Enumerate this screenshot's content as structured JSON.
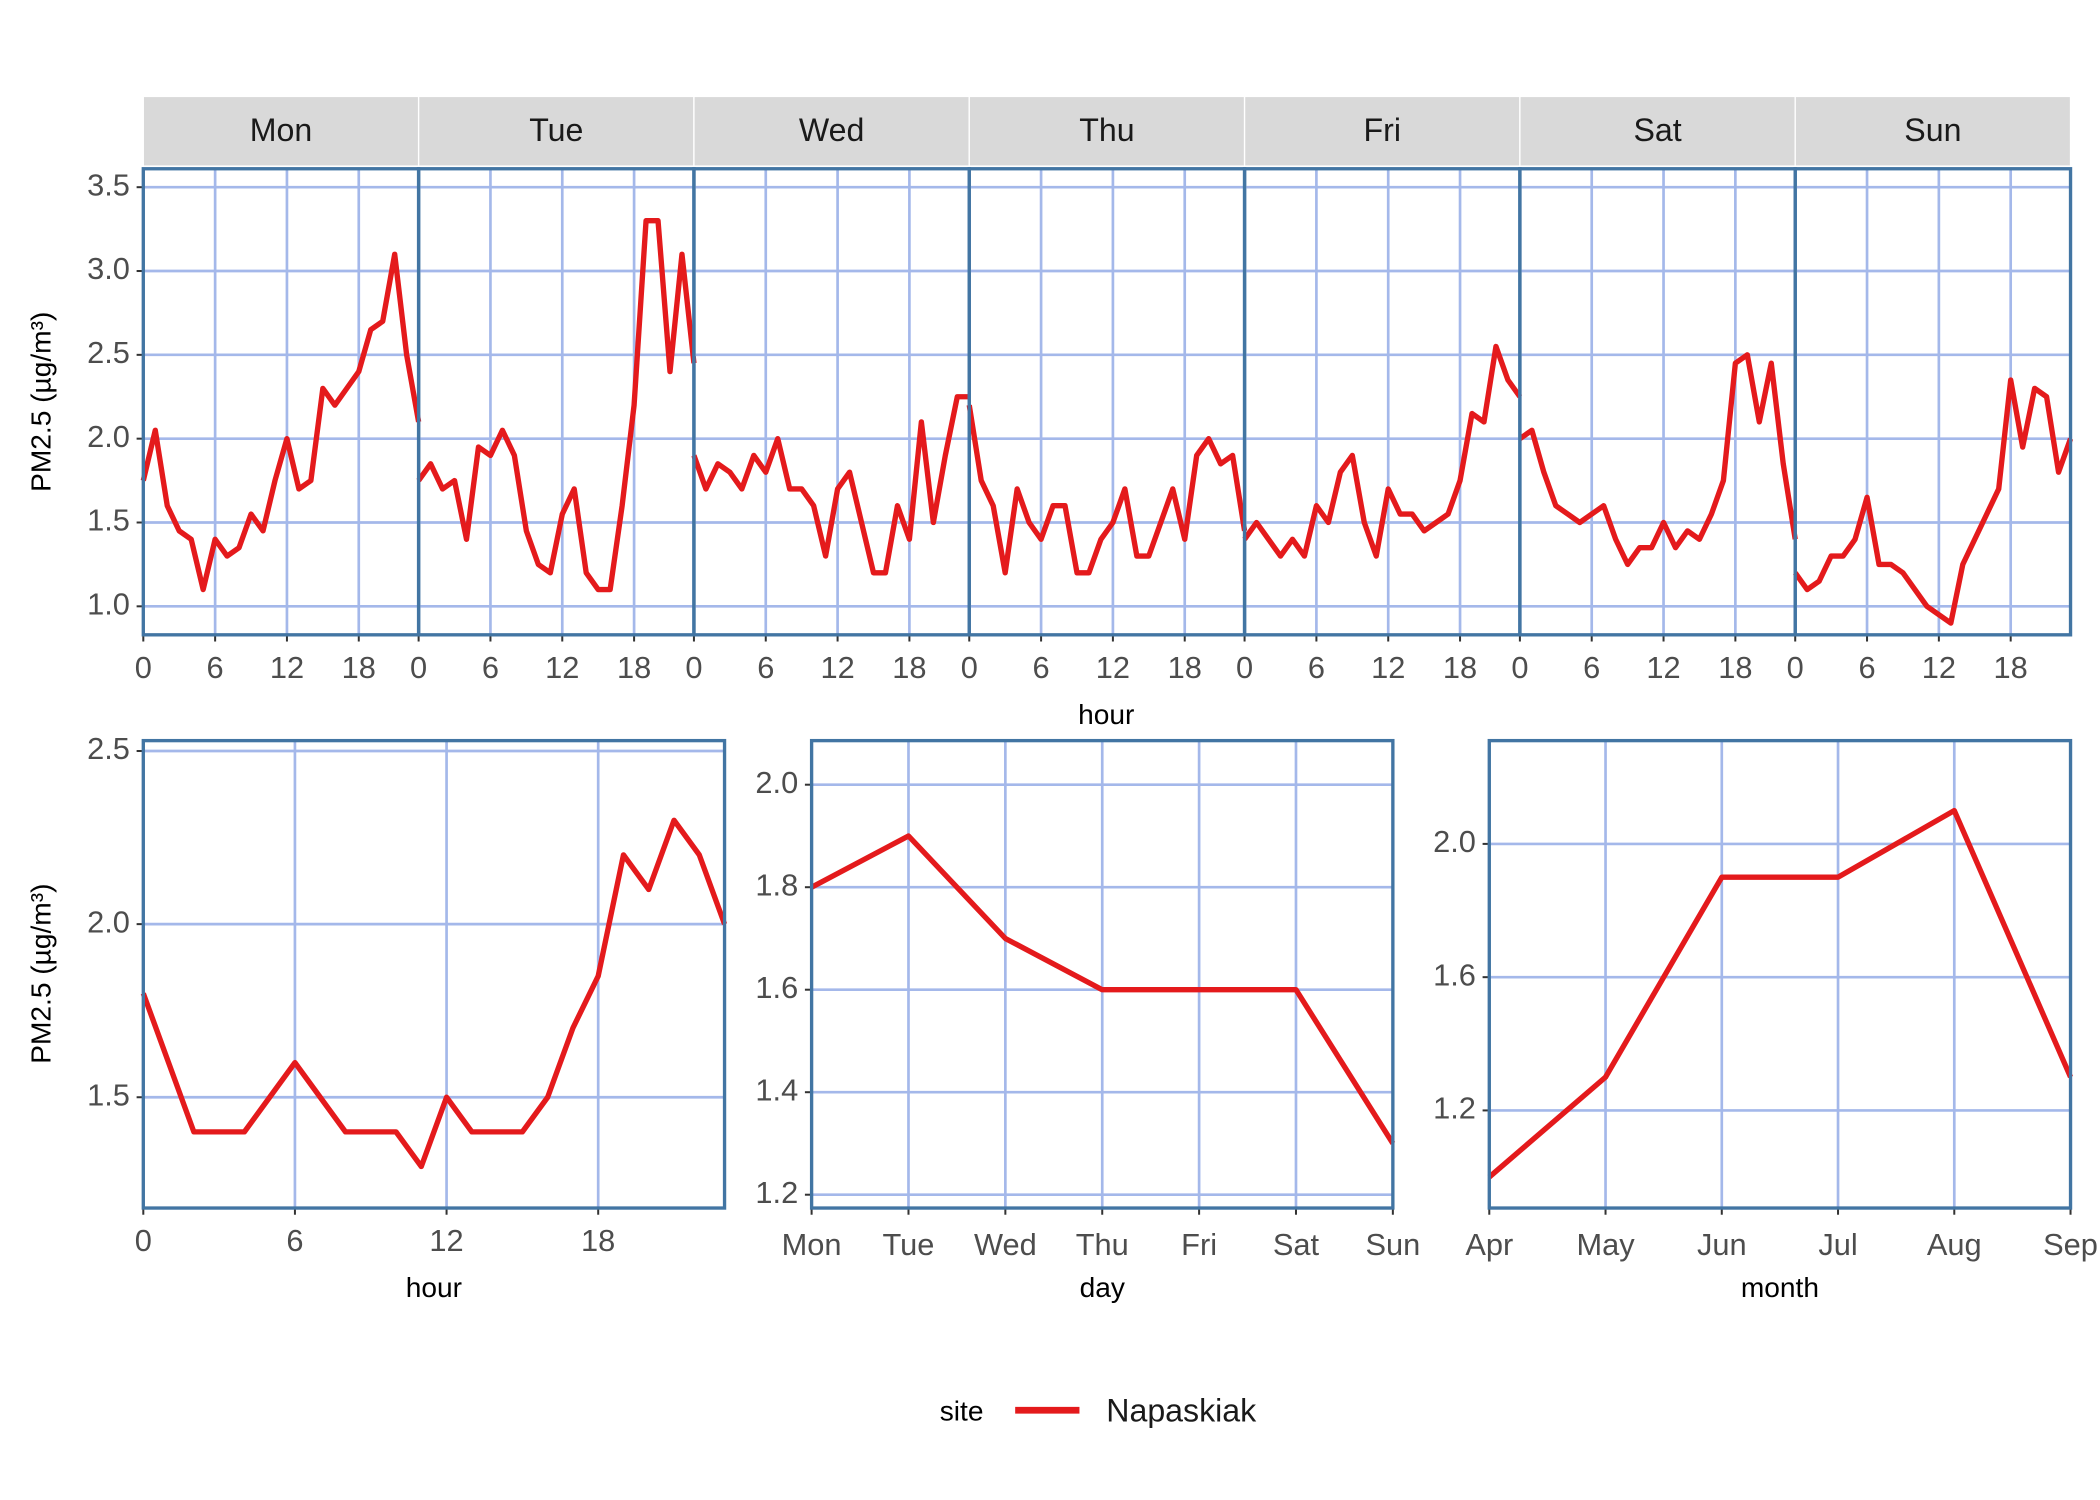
{
  "chart_data": [
    {
      "type": "facet-line",
      "x_label": "hour",
      "y_label": "PM2.5 (µg/m³)",
      "color": "#e41a1c",
      "x": [
        0,
        1,
        2,
        3,
        4,
        5,
        6,
        7,
        8,
        9,
        10,
        11,
        12,
        13,
        14,
        15,
        16,
        17,
        18,
        19,
        20,
        21,
        22,
        23
      ],
      "xlim": [
        0,
        23
      ],
      "xticks": [
        0,
        6,
        12,
        18
      ],
      "ylim": [
        0.83,
        3.61
      ],
      "yticks": [
        {
          "value": 1,
          "label": "1.0"
        },
        1.5,
        {
          "value": 2,
          "label": "2.0"
        },
        2.5,
        {
          "value": 3,
          "label": "3.0"
        },
        3.5
      ],
      "grid": true,
      "panels": [
        {
          "label": "Mon",
          "values": [
            1.75,
            2.05,
            1.6,
            1.45,
            1.4,
            1.1,
            1.4,
            1.3,
            1.35,
            1.55,
            1.45,
            1.75,
            2.0,
            1.7,
            1.75,
            2.3,
            2.2,
            2.3,
            2.4,
            2.65,
            2.7,
            3.1,
            2.5,
            2.1
          ]
        },
        {
          "label": "Tue",
          "values": [
            1.75,
            1.85,
            1.7,
            1.75,
            1.4,
            1.95,
            1.9,
            2.05,
            1.9,
            1.45,
            1.25,
            1.2,
            1.55,
            1.7,
            1.2,
            1.1,
            1.1,
            1.6,
            2.2,
            3.3,
            3.3,
            2.4,
            3.1,
            2.45
          ]
        },
        {
          "label": "Wed",
          "values": [
            1.9,
            1.7,
            1.85,
            1.8,
            1.7,
            1.9,
            1.8,
            2.0,
            1.7,
            1.7,
            1.6,
            1.3,
            1.7,
            1.8,
            1.5,
            1.2,
            1.2,
            1.6,
            1.4,
            2.1,
            1.5,
            1.9,
            2.25,
            2.25
          ]
        },
        {
          "label": "Thu",
          "values": [
            2.2,
            1.75,
            1.6,
            1.2,
            1.7,
            1.5,
            1.4,
            1.6,
            1.6,
            1.2,
            1.2,
            1.4,
            1.5,
            1.7,
            1.3,
            1.3,
            1.5,
            1.7,
            1.4,
            1.9,
            2.0,
            1.85,
            1.9,
            1.45
          ]
        },
        {
          "label": "Fri",
          "values": [
            1.4,
            1.5,
            1.4,
            1.3,
            1.4,
            1.3,
            1.6,
            1.5,
            1.8,
            1.9,
            1.5,
            1.3,
            1.7,
            1.55,
            1.55,
            1.45,
            1.5,
            1.55,
            1.75,
            2.15,
            2.1,
            2.55,
            2.35,
            2.25
          ]
        },
        {
          "label": "Sat",
          "values": [
            2.0,
            2.05,
            1.8,
            1.6,
            1.55,
            1.5,
            1.55,
            1.6,
            1.4,
            1.25,
            1.35,
            1.35,
            1.5,
            1.35,
            1.45,
            1.4,
            1.55,
            1.75,
            2.45,
            2.5,
            2.1,
            2.45,
            1.85,
            1.4
          ]
        },
        {
          "label": "Sun",
          "values": [
            1.2,
            1.1,
            1.15,
            1.3,
            1.3,
            1.4,
            1.65,
            1.25,
            1.25,
            1.2,
            1.1,
            1.0,
            0.95,
            0.9,
            1.25,
            1.4,
            1.55,
            1.7,
            2.35,
            1.95,
            2.3,
            2.25,
            1.8,
            2.0
          ]
        }
      ]
    },
    {
      "type": "line",
      "x_label": "hour",
      "y_label": "PM2.5 (µg/m³)",
      "color": "#e41a1c",
      "x": [
        0,
        1,
        2,
        3,
        4,
        5,
        6,
        7,
        8,
        9,
        10,
        11,
        12,
        13,
        14,
        15,
        16,
        17,
        18,
        19,
        20,
        21,
        22,
        23
      ],
      "values": [
        1.8,
        1.6,
        1.4,
        1.4,
        1.4,
        1.5,
        1.6,
        1.5,
        1.4,
        1.4,
        1.4,
        1.3,
        1.5,
        1.4,
        1.4,
        1.4,
        1.5,
        1.7,
        1.85,
        2.2,
        2.1,
        2.3,
        2.2,
        2.0
      ],
      "xlim": [
        0,
        23
      ],
      "xticks": [
        0,
        6,
        12,
        18
      ],
      "ylim": [
        1.18,
        2.53
      ],
      "yticks": [
        1.5,
        {
          "value": 2,
          "label": "2.0"
        },
        2.5
      ],
      "grid": true
    },
    {
      "type": "category-line",
      "x_label": "day",
      "color": "#e41a1c",
      "categories": [
        "Mon",
        "Tue",
        "Wed",
        "Thu",
        "Fri",
        "Sat",
        "Sun"
      ],
      "values": [
        1.8,
        1.9,
        1.7,
        1.6,
        1.6,
        1.6,
        1.3
      ],
      "ylim": [
        1.174,
        2.086
      ],
      "yticks": [
        1.2,
        1.4,
        1.6,
        1.8,
        {
          "value": 2,
          "label": "2.0"
        }
      ],
      "grid": true
    },
    {
      "type": "category-line",
      "x_label": "month",
      "color": "#e41a1c",
      "categories": [
        "Apr",
        "May",
        "Jun",
        "Jul",
        "Aug",
        "Sep"
      ],
      "values": [
        1.0,
        1.3,
        1.9,
        1.9,
        2.1,
        1.3
      ],
      "ylim": [
        0.907,
        2.31
      ],
      "yticks": [
        1.2,
        1.6,
        {
          "value": 2,
          "label": "2.0"
        }
      ],
      "grid": true
    }
  ],
  "legend": {
    "title": "site",
    "entries": [
      {
        "name": "Napaskiak",
        "color": "#e41a1c"
      }
    ]
  }
}
